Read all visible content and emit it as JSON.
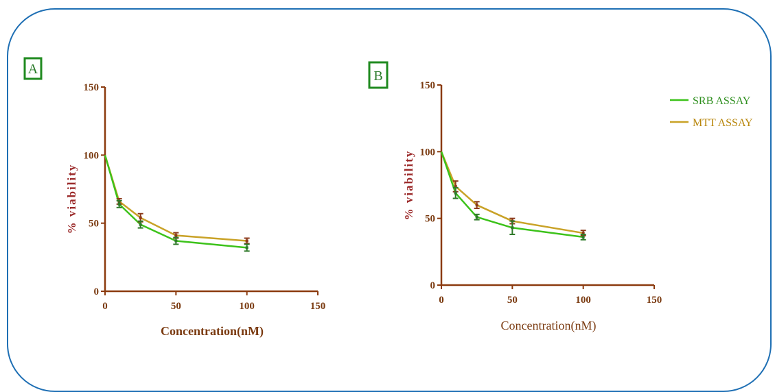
{
  "colors": {
    "frame": "#1e6fb4",
    "axis": "#8b3a0e",
    "srb": "#3cc21a",
    "mtt": "#c9a227",
    "error_bar_srb": "#2f7a2a",
    "error_bar_mtt": "#8b3a1a",
    "panel_box": "#1f8a1f"
  },
  "legend": {
    "position": "top-right",
    "entries": [
      "SRB ASSAY",
      "MTT ASSAY"
    ]
  },
  "chart_data": [
    {
      "type": "line",
      "panel_label": "A",
      "xlabel": "Concentration(nM)",
      "ylabel": "% viability",
      "xlim": [
        0,
        150
      ],
      "ylim": [
        0,
        150
      ],
      "xticks": [
        "0",
        "50",
        "100",
        "150"
      ],
      "yticks": [
        "0",
        "50",
        "100",
        "150"
      ],
      "x": [
        0,
        10,
        25,
        50,
        100
      ],
      "series": [
        {
          "name": "SRB ASSAY",
          "values": [
            100,
            64,
            49,
            37,
            32
          ],
          "errors": [
            0,
            2.5,
            2.5,
            2.5,
            2.5
          ]
        },
        {
          "name": "MTT ASSAY",
          "values": [
            100,
            66,
            54,
            41,
            37
          ],
          "errors": [
            0,
            2,
            3,
            2,
            2
          ]
        }
      ]
    },
    {
      "type": "line",
      "panel_label": "B",
      "xlabel": "Concentration(nM)",
      "ylabel": "% viability",
      "xlim": [
        0,
        150
      ],
      "ylim": [
        0,
        150
      ],
      "xticks": [
        "0",
        "50",
        "100",
        "150"
      ],
      "yticks": [
        "0",
        "50",
        "100",
        "150"
      ],
      "x": [
        0,
        10,
        25,
        50,
        100
      ],
      "series": [
        {
          "name": "SRB ASSAY",
          "values": [
            100,
            69,
            51,
            43,
            36
          ],
          "errors": [
            0,
            4,
            2,
            5,
            2
          ]
        },
        {
          "name": "MTT ASSAY",
          "values": [
            100,
            74,
            60,
            48,
            39
          ],
          "errors": [
            0,
            4,
            2.5,
            2,
            2
          ]
        }
      ]
    }
  ]
}
